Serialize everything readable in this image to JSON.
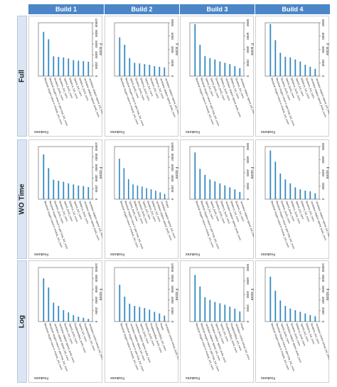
{
  "columns": [
    "Build 1",
    "Build 2",
    "Build 3",
    "Build 4"
  ],
  "rows": [
    "Full",
    "WO Time",
    "Log"
  ],
  "axis_titles": {
    "value": "F score",
    "category": "Features"
  },
  "colors": {
    "header": "#4a86c8",
    "bar": "#2e86c1",
    "row_header_bg": "#dce5f3"
  },
  "chart_data": [
    {
      "type": "bar",
      "row": "Full",
      "column": "Build 1",
      "xlabel": "F score",
      "ylabel": "Features",
      "ticks": [
        "0",
        "2000",
        "4000",
        "6000",
        "8000",
        "10000"
      ],
      "xlim": [
        0,
        10000
      ],
      "categories": [
        "Residual oxygen value in module_full_norm",
        "Residual oxygen value in gas loop_full_norm",
        "Duration_build_norm",
        "Duration_full_norm",
        "Speed_build_norm",
        "Distance_full_norm",
        "Speed_full_norm",
        "Distance_build_norm",
        "Ventilator rotation speed_build_norm",
        "Ventilator rotation speed_full_norm"
      ],
      "values": [
        8300,
        6900,
        3700,
        3600,
        3500,
        3300,
        3000,
        2900,
        2800,
        2700
      ]
    },
    {
      "type": "bar",
      "row": "Full",
      "column": "Build 2",
      "xlabel": "F score",
      "ylabel": "Features",
      "ticks": [
        "0",
        "2000",
        "4000",
        "6000",
        "8000"
      ],
      "xlim": [
        0,
        8000
      ],
      "categories": [
        "Residual oxygen value in module_full_norm",
        "Residual oxygen value in gas loop_full_norm",
        "Speed_build_norm",
        "Duration_build_norm",
        "Distance_build_norm",
        "Speed_full_norm",
        "Duration_full_norm",
        "Distance_full_norm",
        "Ventilator rotation speed_build_norm",
        "Ventilator rotation speed_full_norm"
      ],
      "values": [
        5800,
        4700,
        2700,
        2000,
        1900,
        1800,
        1700,
        1500,
        1400,
        1300
      ]
    },
    {
      "type": "bar",
      "row": "Full",
      "column": "Build 3",
      "xlabel": "F score",
      "ylabel": "Features",
      "ticks": [
        "0",
        "2000",
        "4000",
        "6000",
        "8000"
      ],
      "xlim": [
        0,
        8000
      ],
      "categories": [
        "Residual oxygen value in module_full_norm",
        "Residual oxygen value in gas loop_full_norm",
        "Speed_full_norm",
        "Speed_build_norm",
        "Duration_build_norm",
        "Distance_build_norm",
        "Ventilator rotation speed_build_norm",
        "Distance_full_norm",
        "Duration_full_norm",
        "Ventilator rotation speed_full_norm"
      ],
      "values": [
        7800,
        4700,
        3000,
        2700,
        2500,
        2200,
        2000,
        1800,
        1500,
        1200
      ]
    },
    {
      "type": "bar",
      "row": "Full",
      "column": "Build 4",
      "xlabel": "F score",
      "ylabel": "Features",
      "ticks": [
        "0",
        "2000",
        "4000",
        "6000",
        "8000"
      ],
      "xlim": [
        0,
        8000
      ],
      "categories": [
        "Residual oxygen value in module_full_norm",
        "Residual oxygen value in gas loop_full_norm",
        "Duration_build_norm",
        "Speed_build_norm",
        "Distance_build_norm",
        "Speed_full_norm",
        "Distance_full_norm",
        "Duration_full_norm",
        "Ventilator rotation speed_build_norm",
        "Ventilator rotation speed_full_norm"
      ],
      "values": [
        7800,
        5400,
        3500,
        2900,
        2800,
        2500,
        2200,
        1700,
        1400,
        1100
      ]
    },
    {
      "type": "bar",
      "row": "WO Time",
      "column": "Build 1",
      "xlabel": "F score",
      "ylabel": "Features",
      "ticks": [
        "0",
        "2000",
        "4000",
        "6000",
        "8000",
        "10000"
      ],
      "xlim": [
        0,
        10000
      ],
      "categories": [
        "Residual oxygen value in module_full_norm",
        "Residual oxygen value in gas loop_full_norm",
        "Duration_build_norm",
        "Duration_full_norm",
        "Speed_build_norm",
        "Distance_full_norm",
        "Speed_full_norm",
        "Distance_build_norm",
        "Ventilator rotation speed_build_norm",
        "Ventilator rotation speed_full_norm"
      ],
      "values": [
        8500,
        5900,
        3700,
        3500,
        3300,
        3000,
        2800,
        2600,
        2500,
        2300
      ]
    },
    {
      "type": "bar",
      "row": "WO Time",
      "column": "Build 2",
      "xlabel": "F score",
      "ylabel": "Features",
      "ticks": [
        "0",
        "2000",
        "4000",
        "6000",
        "8000",
        "10000"
      ],
      "xlim": [
        0,
        10000
      ],
      "categories": [
        "Residual oxygen value in module_full_norm",
        "Residual oxygen value in gas loop_full_norm",
        "Speed_build_norm",
        "Distance_build_norm",
        "Duration_build_norm",
        "Speed_full_norm",
        "Duration_full_norm",
        "Distance_full_norm",
        "Ventilator rotation speed_build_norm",
        "Ventilator rotation speed_full_norm",
        "Phase"
      ],
      "values": [
        7700,
        5900,
        3800,
        2800,
        2600,
        2400,
        2100,
        1900,
        1600,
        1300,
        1000
      ]
    },
    {
      "type": "bar",
      "row": "WO Time",
      "column": "Build 3",
      "xlabel": "F score",
      "ylabel": "Features",
      "ticks": [
        "0",
        "2000",
        "4000",
        "6000",
        "8000"
      ],
      "xlim": [
        0,
        8000
      ],
      "categories": [
        "Residual oxygen value in module_full_norm",
        "Residual oxygen value in gas loop_full_norm",
        "Speed_full_norm",
        "Speed_build_norm",
        "Duration_build_norm",
        "Distance_build_norm",
        "Ventilator rotation speed_build_norm",
        "Distance_full_norm",
        "Duration_full_norm",
        "Ventilator rotation speed_full_norm"
      ],
      "values": [
        7100,
        4600,
        3700,
        3000,
        2700,
        2400,
        2100,
        1800,
        1500,
        1100
      ]
    },
    {
      "type": "bar",
      "row": "WO Time",
      "column": "Build 4",
      "xlabel": "F score",
      "ylabel": "Features",
      "ticks": [
        "0",
        "2000",
        "4000",
        "6000",
        "8000"
      ],
      "xlim": [
        0,
        8000
      ],
      "categories": [
        "Residual oxygen value in module_full_norm",
        "Residual oxygen value in gas loop_full_norm",
        "Duration_build_norm",
        "Speed_build_norm",
        "Distance_build_norm",
        "Speed_full_norm",
        "Distance_full_norm",
        "Duration_full_norm",
        "Ventilator rotation speed_build_norm",
        "Ventilator rotation speed_full_norm"
      ],
      "values": [
        7400,
        5700,
        3900,
        3000,
        2400,
        1800,
        1500,
        1300,
        1200,
        900
      ]
    },
    {
      "type": "bar",
      "row": "Log",
      "column": "Build 1",
      "xlabel": "F score",
      "ylabel": "Features",
      "ticks": [
        "0",
        "2000",
        "4000",
        "6000",
        "8000",
        "10000"
      ],
      "xlim": [
        0,
        10000
      ],
      "categories": [
        "Residual oxygen value in module_full_norm",
        "Residual oxygen value in gas loop_full_norm",
        "Ventilator rotation speed_full_norm",
        "Ventilator rotation speed_build_norm",
        "Duration_full_norm",
        "Speed_build_norm",
        "Flowfactor(fan)_build_norm",
        "Speed_full_norm",
        "Flowfactor(fan)_full_norm",
        "Ventilator control actual_full_norm"
      ],
      "values": [
        8000,
        6300,
        3500,
        2900,
        2100,
        1700,
        1200,
        900,
        700,
        500
      ]
    },
    {
      "type": "bar",
      "row": "Log",
      "column": "Build 2",
      "xlabel": "F score",
      "ylabel": "Features",
      "ticks": [
        "0",
        "2000",
        "4000",
        "6000",
        "8000",
        "10000"
      ],
      "xlim": [
        0,
        10000
      ],
      "categories": [
        "Residual oxygen value in module_full_norm",
        "Residual oxygen value in gas loop_full_norm",
        "Ventilator rotation speed_full_norm",
        "Ventilator rotation speed_build_norm",
        "Speed_build_norm",
        "Duration_build_norm",
        "Flowfactor(fan)_build_norm",
        "Flowfactor(fan)_full_norm",
        "Phase",
        "Ventilator control actual_build_norm"
      ],
      "values": [
        6800,
        4600,
        3300,
        2900,
        2700,
        2500,
        2200,
        1800,
        1500,
        1100
      ]
    },
    {
      "type": "bar",
      "row": "Log",
      "column": "Build 3",
      "xlabel": "F score",
      "ylabel": "Features",
      "ticks": [
        "0",
        "2000",
        "4000",
        "6000",
        "8000"
      ],
      "xlim": [
        0,
        8000
      ],
      "categories": [
        "Residual oxygen value in module_full_norm",
        "Residual oxygen value in gas loop_full_norm",
        "Ventilator rotation speed_full_norm",
        "Ventilator rotation speed_build_norm",
        "Speed_build_norm",
        "Speed_full_norm",
        "Flowfactor(fan)_build_norm",
        "Flowfactor(fan)_full_norm",
        "Ventilator control actual_full_norm",
        "Phase"
      ],
      "values": [
        6900,
        5200,
        3600,
        3200,
        2900,
        2700,
        2500,
        2200,
        1900,
        1500
      ]
    },
    {
      "type": "bar",
      "row": "Log",
      "column": "Build 4",
      "xlabel": "F score",
      "ylabel": "Features",
      "ticks": [
        "0",
        "2000",
        "4000",
        "6000",
        "8000",
        "10000"
      ],
      "xlim": [
        0,
        10000
      ],
      "categories": [
        "Residual oxygen value in module_full_norm",
        "Residual oxygen value in gas loop_full_norm",
        "Speed_build_norm",
        "Ventilator rotation speed_build_norm",
        "Duration_build_norm",
        "Distance_build_norm",
        "Speed_full_norm",
        "Distance_full_norm",
        "Duration_full_norm",
        "Ventilator control actual_full_norm"
      ],
      "values": [
        8300,
        5700,
        3900,
        2900,
        2400,
        2100,
        1800,
        1500,
        1200,
        1000
      ]
    }
  ]
}
